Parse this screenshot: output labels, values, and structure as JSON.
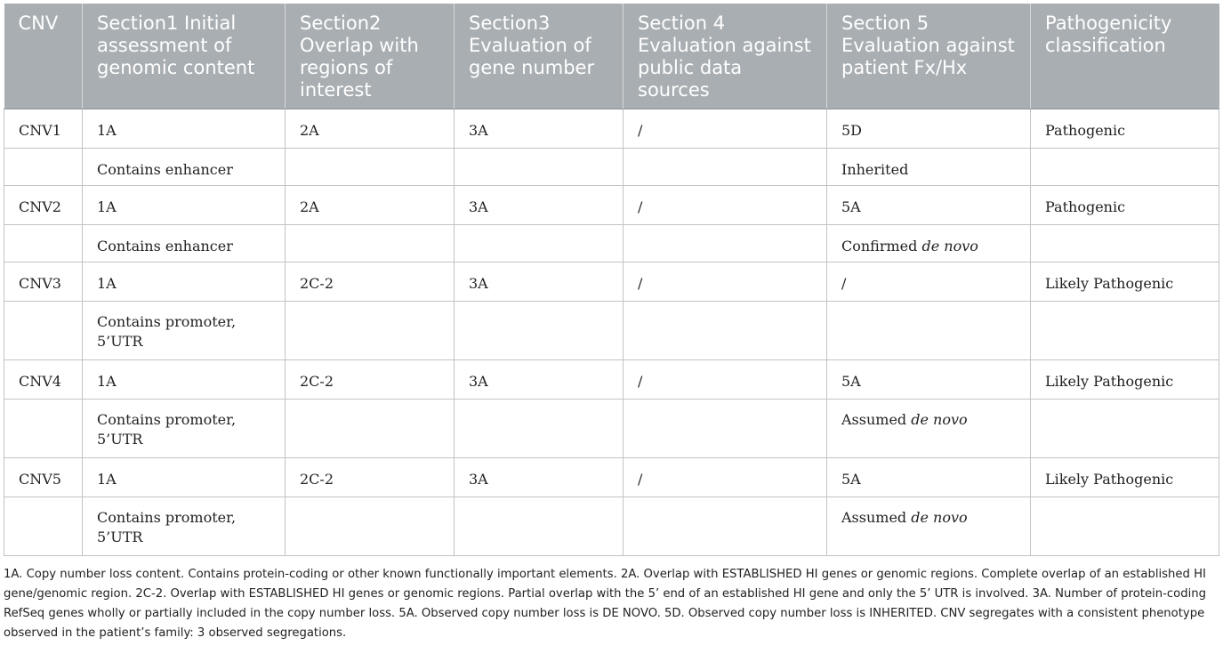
{
  "table": {
    "headers": [
      "CNV",
      "Section1 Initial assessment of genomic content",
      "Section2 Overlap with regions of interest",
      "Section3 Evaluation of gene number",
      "Section 4 Evaluation against public data sources",
      "Section 5 Evaluation against patient Fx/Hx",
      "Pathogenicity classification"
    ],
    "rows": [
      {
        "cells": [
          "CNV1",
          "1A",
          "2A",
          "3A",
          "/",
          "5D",
          "Pathogenic"
        ]
      },
      {
        "cells": [
          "",
          "Contains enhancer",
          "",
          "",
          "",
          "Inherited",
          ""
        ]
      },
      {
        "cells": [
          "CNV2",
          "1A",
          "2A",
          "3A",
          "/",
          "5A",
          "Pathogenic"
        ]
      },
      {
        "cells": [
          "",
          "Contains enhancer",
          "",
          "",
          "",
          "Confirmed ",
          ""
        ],
        "italic_suffix": "de novo"
      },
      {
        "cells": [
          "CNV3",
          "1A",
          "2C-2",
          "3A",
          "/",
          "/",
          "Likely Pathogenic"
        ]
      },
      {
        "cells": [
          "",
          "Contains promoter, 5’UTR",
          "",
          "",
          "",
          "",
          ""
        ]
      },
      {
        "cells": [
          "CNV4",
          "1A",
          "2C-2",
          "3A",
          "/",
          "5A",
          "Likely Pathogenic"
        ]
      },
      {
        "cells": [
          "",
          "Contains promoter, 5’UTR",
          "",
          "",
          "",
          "Assumed ",
          ""
        ],
        "italic_suffix": "de novo"
      },
      {
        "cells": [
          "CNV5",
          "1A",
          "2C-2",
          "3A",
          "/",
          "5A",
          "Likely Pathogenic"
        ]
      },
      {
        "cells": [
          "",
          "Contains promoter, 5’UTR",
          "",
          "",
          "",
          "Assumed ",
          ""
        ],
        "italic_suffix": "de novo"
      }
    ]
  },
  "footnote": "1A. Copy number loss content. Contains protein-coding or other known functionally important elements. 2A. Overlap with ESTABLISHED HI genes or genomic regions. Complete overlap of an established HI gene/genomic region. 2C-2. Overlap with ESTABLISHED HI genes or genomic regions. Partial overlap with the 5’ end of an established HI gene and only the 5’ UTR is involved. 3A. Number of protein-coding RefSeq genes wholly or partially included in the copy number loss. 5A. Observed copy number loss is DE NOVO. 5D. Observed copy number loss is INHERITED. CNV segregates with a consistent phenotype observed in the patient’s family: 3 observed segregations."
}
